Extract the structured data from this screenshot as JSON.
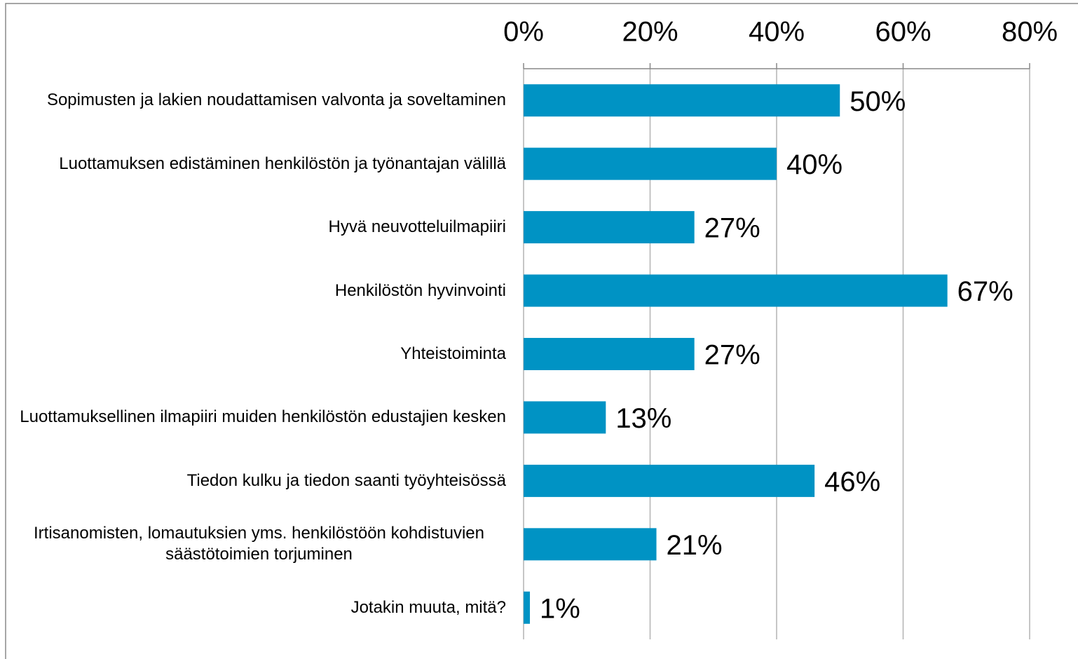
{
  "chart_data": {
    "type": "bar",
    "orientation": "horizontal",
    "categories": [
      "Sopimusten ja lakien noudattamisen valvonta ja soveltaminen",
      "Luottamuksen edistäminen henkilöstön ja työnantajan välillä",
      "Hyvä neuvotteluilmapiiri",
      "Henkilöstön hyvinvointi",
      "Yhteistoiminta",
      "Luottamuksellinen ilmapiiri muiden henkilöstön edustajien kesken",
      "Tiedon kulku ja tiedon saanti työyhteisössä",
      "Irtisanomisten, lomautuksien yms. henkilöstöön kohdistuvien säästötoimien torjuminen",
      "Jotakin muuta, mitä?"
    ],
    "values": [
      50,
      40,
      27,
      67,
      27,
      13,
      46,
      21,
      1
    ],
    "value_labels": [
      "50%",
      "40%",
      "27%",
      "67%",
      "27%",
      "13%",
      "46%",
      "21%",
      "1%"
    ],
    "color": "#0093c4",
    "xlim": [
      0,
      80
    ],
    "xticks": [
      {
        "value": 0,
        "label": "0%"
      },
      {
        "value": 20,
        "label": "20%"
      },
      {
        "value": 40,
        "label": "40%"
      },
      {
        "value": 60,
        "label": "60%"
      },
      {
        "value": 80,
        "label": "80%"
      }
    ],
    "grid": true
  }
}
